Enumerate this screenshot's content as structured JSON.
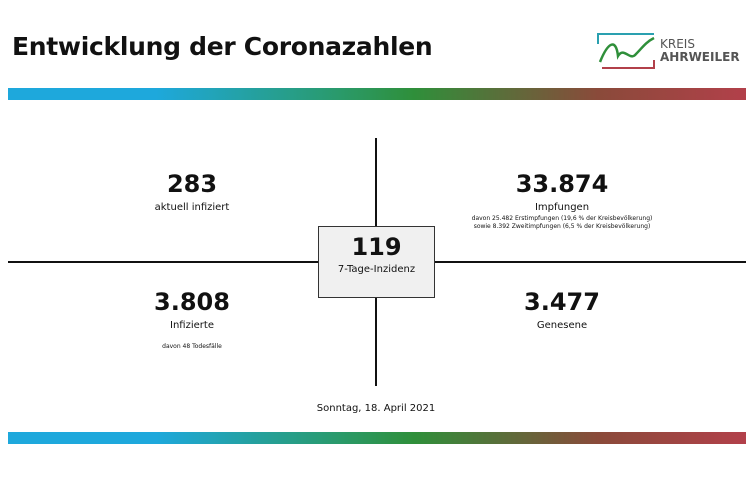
{
  "header": {
    "title": "Entwicklung der Coronazahlen",
    "logo": {
      "line1": "KREIS",
      "line2": "AHRWEILER"
    }
  },
  "colors": {
    "bar_blue": "#1ea8dc",
    "bar_green": "#2f8f3a",
    "bar_red": "#b2404a"
  },
  "quadrants": {
    "top_left": {
      "value": "283",
      "label": "aktuell infiziert"
    },
    "top_right": {
      "value": "33.874",
      "label": "Impfungen",
      "note1": "davon 25.482 Erstimpfungen (19,6 % der Kreisbevölkerung)",
      "note2": "sowie 8.392 Zweitimpfungen (6,5 % der Kreisbevölkerung)"
    },
    "bottom_left": {
      "value": "3.808",
      "label": "Infizierte",
      "note": "davon 48 Todesfälle"
    },
    "bottom_right": {
      "value": "3.477",
      "label": "Genesene"
    }
  },
  "center": {
    "value": "119",
    "label": "7-Tage-Inzidenz"
  },
  "date": "Sonntag, 18. April 2021"
}
